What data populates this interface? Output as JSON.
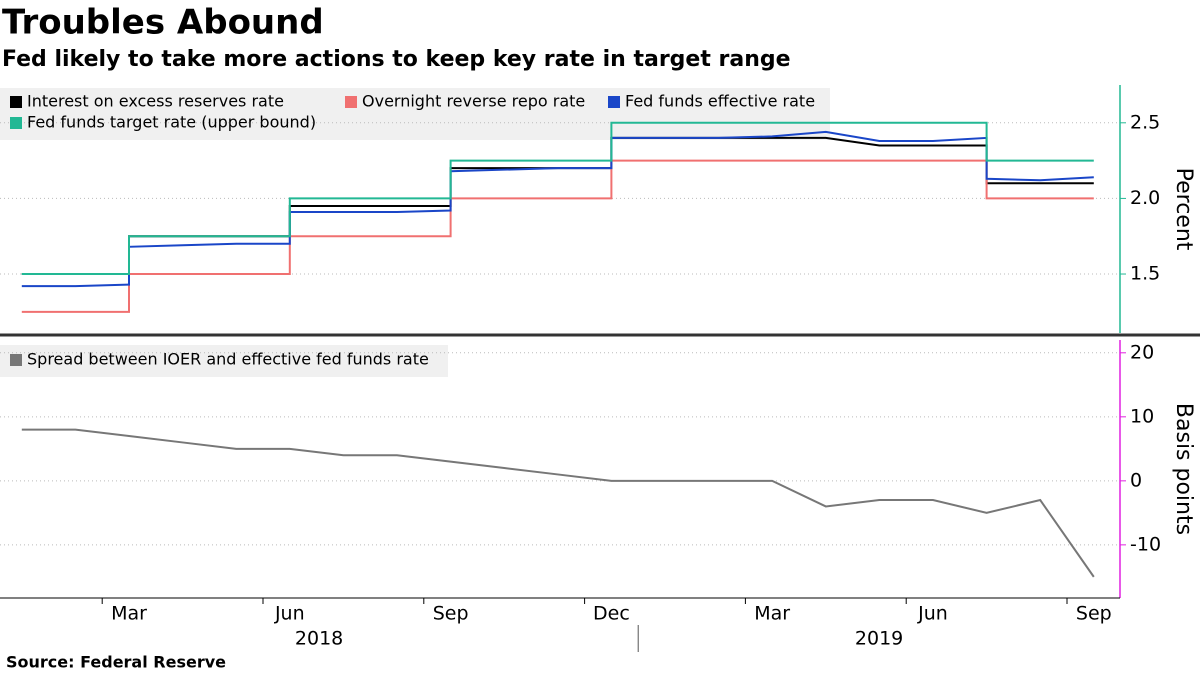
{
  "title": "Troubles Abound",
  "subtitle": "Fed likely to take more actions to keep key rate in target range",
  "source": "Source: Federal Reserve",
  "chart_data": [
    {
      "type": "line",
      "x": [
        "2018-01",
        "2018-02",
        "2018-03",
        "2018-03",
        "2018-04",
        "2018-05",
        "2018-06",
        "2018-06",
        "2018-07",
        "2018-08",
        "2018-09",
        "2018-09",
        "2018-10",
        "2018-11",
        "2018-12",
        "2018-12",
        "2019-01",
        "2019-02",
        "2019-03",
        "2019-04",
        "2019-05",
        "2019-06",
        "2019-07",
        "2019-07",
        "2019-08",
        "2019-09"
      ],
      "series": [
        {
          "name": "Interest on excess reserves rate",
          "color": "#000000",
          "values": [
            1.5,
            1.5,
            1.5,
            1.75,
            1.75,
            1.75,
            1.75,
            1.95,
            1.95,
            1.95,
            1.95,
            2.2,
            2.2,
            2.2,
            2.2,
            2.4,
            2.4,
            2.4,
            2.4,
            2.4,
            2.35,
            2.35,
            2.35,
            2.1,
            2.1,
            2.1
          ]
        },
        {
          "name": "Overnight reverse repo rate",
          "color": "#f07070",
          "values": [
            1.25,
            1.25,
            1.25,
            1.5,
            1.5,
            1.5,
            1.5,
            1.75,
            1.75,
            1.75,
            1.75,
            2,
            2,
            2,
            2,
            2.25,
            2.25,
            2.25,
            2.25,
            2.25,
            2.25,
            2.25,
            2.25,
            2,
            2,
            2
          ]
        },
        {
          "name": "Fed funds effective rate",
          "color": "#1a46c8",
          "values": [
            1.42,
            1.42,
            1.43,
            1.68,
            1.69,
            1.7,
            1.7,
            1.91,
            1.91,
            1.91,
            1.92,
            2.18,
            2.19,
            2.2,
            2.2,
            2.4,
            2.4,
            2.4,
            2.41,
            2.44,
            2.38,
            2.38,
            2.4,
            2.13,
            2.12,
            2.14
          ]
        },
        {
          "name": "Fed funds target rate (upper bound)",
          "color": "#22b894",
          "values": [
            1.5,
            1.5,
            1.5,
            1.75,
            1.75,
            1.75,
            1.75,
            2,
            2,
            2,
            2,
            2.25,
            2.25,
            2.25,
            2.25,
            2.5,
            2.5,
            2.5,
            2.5,
            2.5,
            2.5,
            2.5,
            2.5,
            2.25,
            2.25,
            2.25
          ]
        }
      ],
      "ylim": [
        1.11,
        2.75
      ],
      "yticks": [
        {
          "value": 1.5,
          "label": "1.5"
        },
        {
          "value": 2,
          "label": "2.0"
        },
        {
          "value": 2.5,
          "label": "2.5"
        }
      ],
      "ylabel": "Percent",
      "axis_color": "#22b894",
      "grid": true
    },
    {
      "type": "line",
      "x": [
        "2018-01",
        "2018-02",
        "2018-03",
        "2018-04",
        "2018-05",
        "2018-06",
        "2018-07",
        "2018-08",
        "2018-09",
        "2018-10",
        "2018-11",
        "2018-12",
        "2019-01",
        "2019-02",
        "2019-03",
        "2019-04",
        "2019-05",
        "2019-06",
        "2019-07",
        "2019-08",
        "2019-09"
      ],
      "series": [
        {
          "name": "Spread between IOER and effective fed funds rate",
          "color": "#777777",
          "values": [
            8,
            8,
            7,
            6,
            5,
            5,
            4,
            4,
            3,
            2,
            1,
            0,
            0,
            0,
            0,
            -4,
            -3,
            -3,
            -5,
            -3,
            -15
          ]
        }
      ],
      "ylim": [
        -18.3,
        22
      ],
      "yticks": [
        -10,
        0,
        10,
        20
      ],
      "ylabel": "Basis points",
      "axis_color": "#e020e0",
      "grid": true,
      "xticks": [
        {
          "value": "2018-03",
          "label": "Mar"
        },
        {
          "value": "2018-06",
          "label": "Jun"
        },
        {
          "value": "2018-09",
          "label": "Sep"
        },
        {
          "value": "2018-12",
          "label": "Dec"
        },
        {
          "value": "2019-03",
          "label": "Mar"
        },
        {
          "value": "2019-06",
          "label": "Jun"
        },
        {
          "value": "2019-09",
          "label": "Sep"
        }
      ],
      "years": [
        "2018",
        "2019"
      ]
    }
  ]
}
